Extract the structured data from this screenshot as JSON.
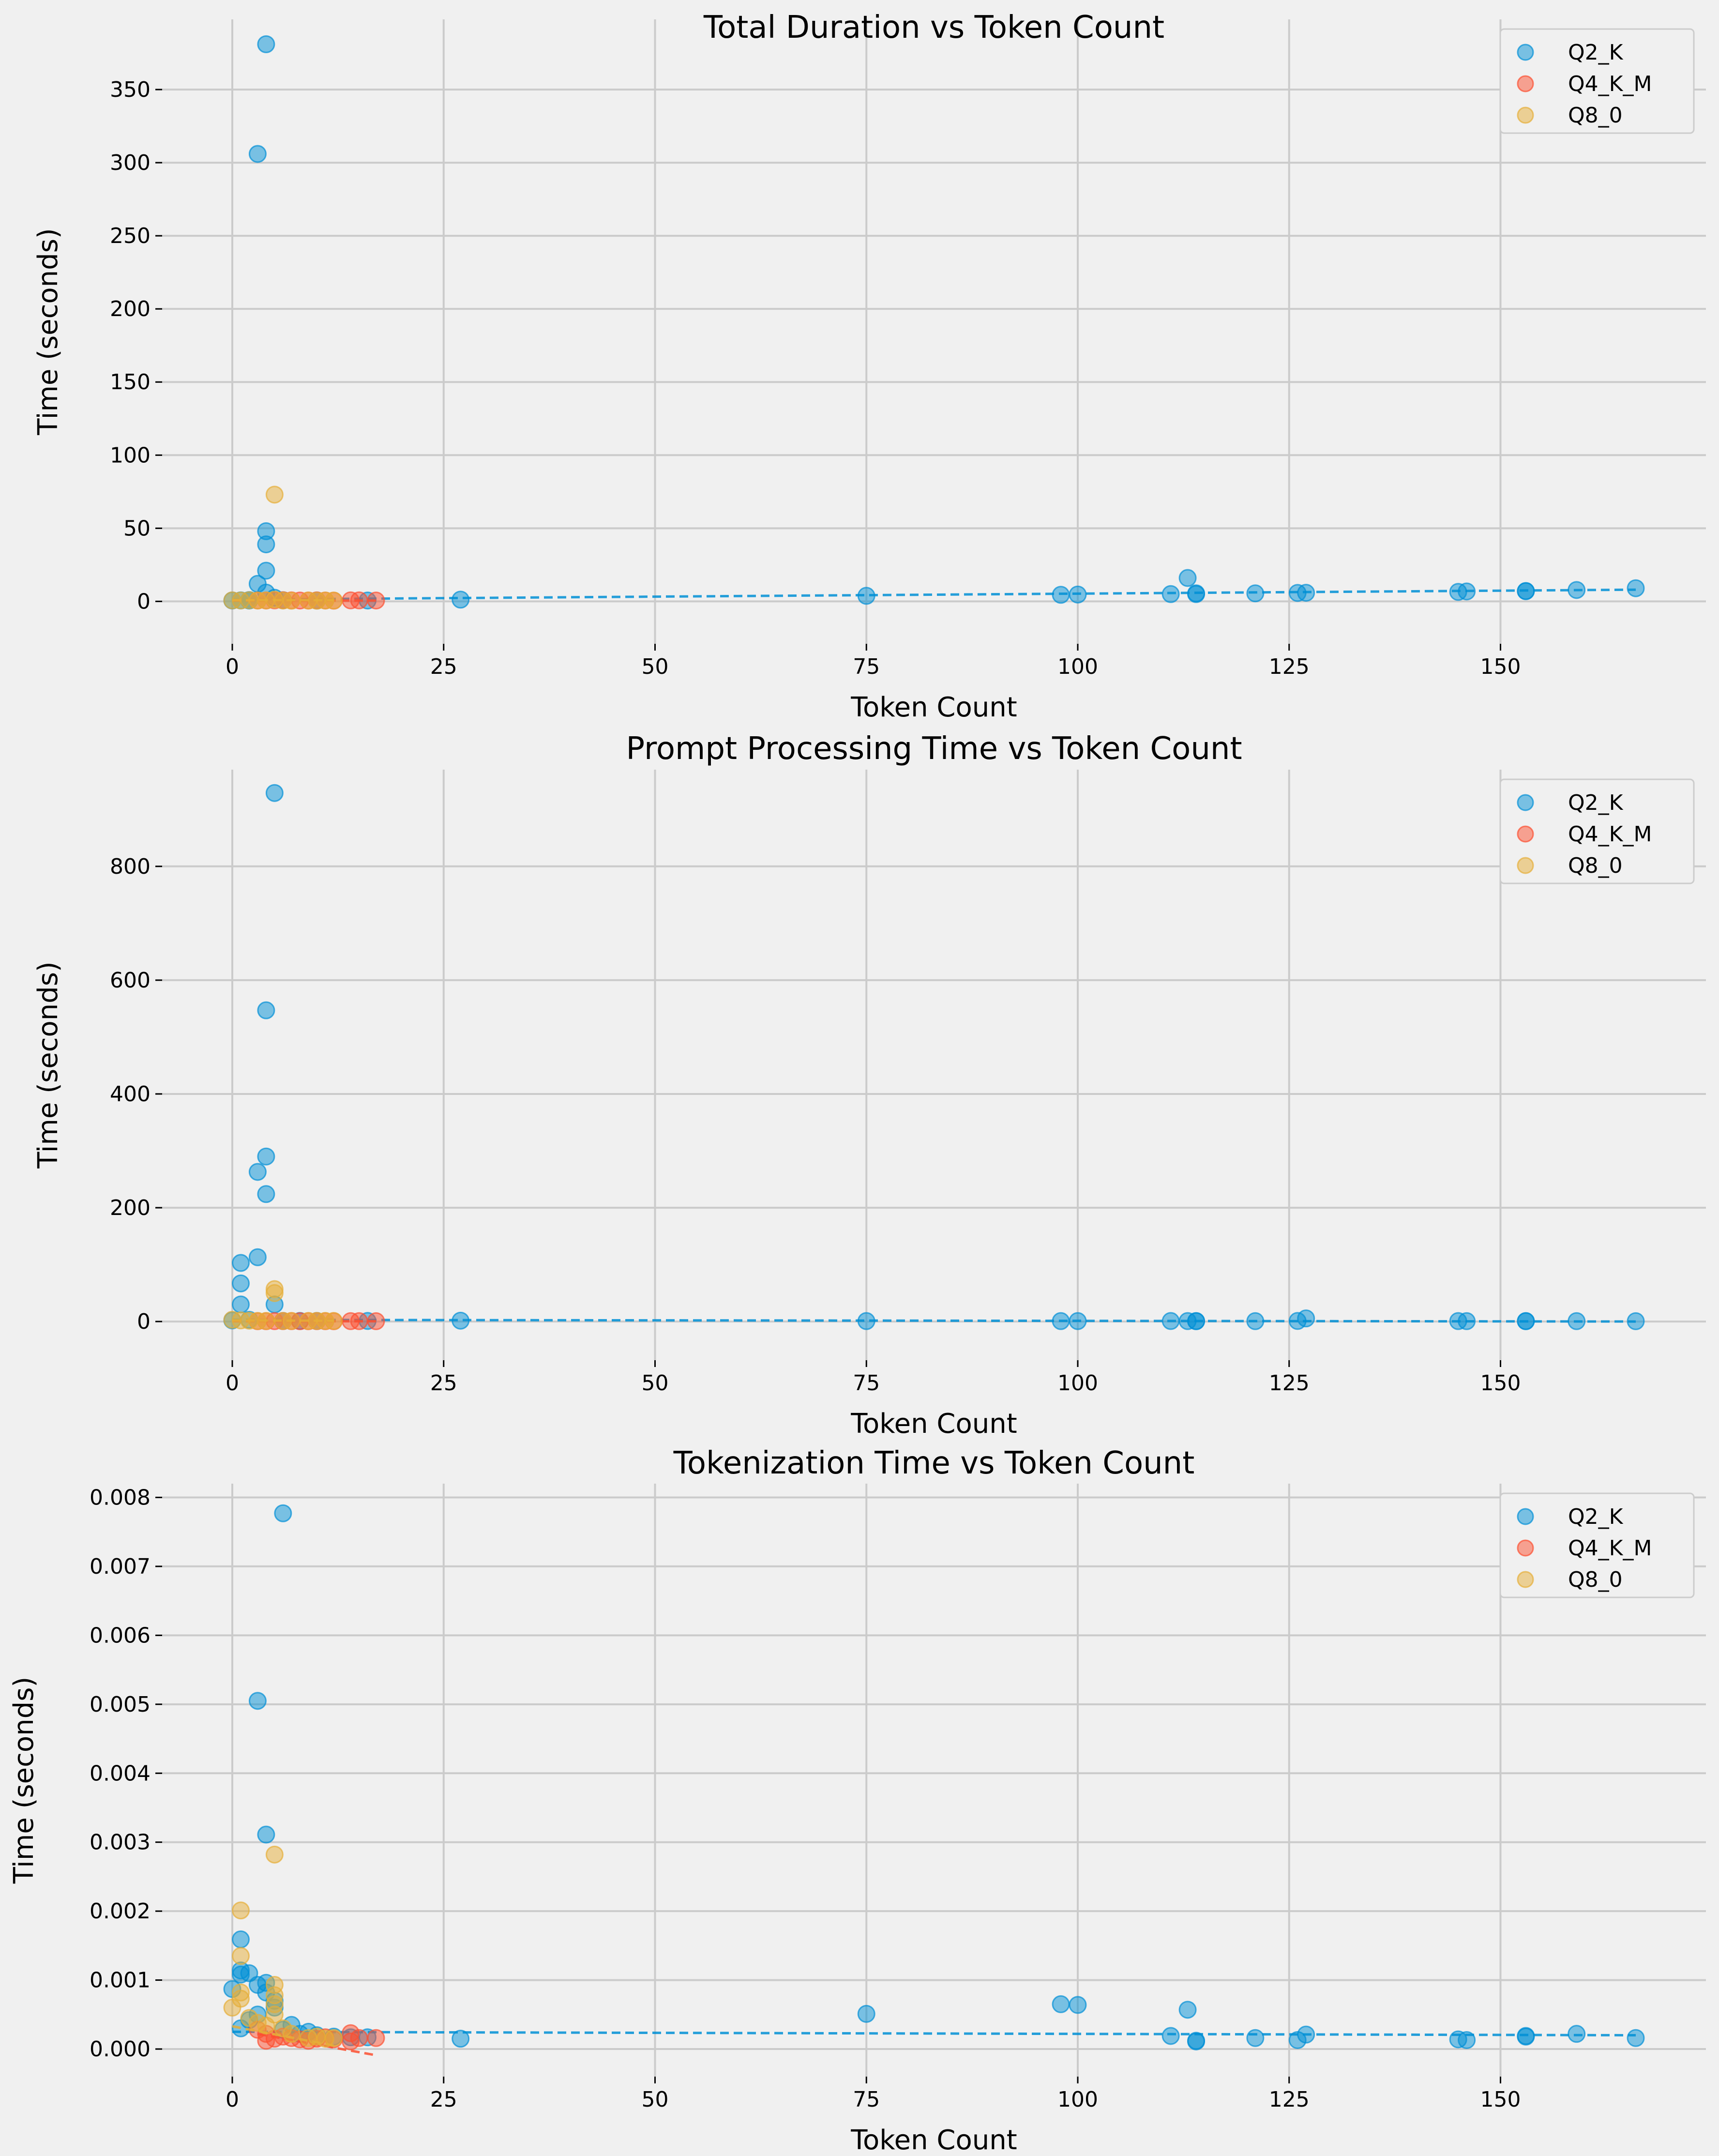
{
  "colors": {
    "Q2_K": "#008fd5",
    "Q4_K_M": "#fc4f30",
    "Q8_0": "#e5ae38",
    "background": "#f0f0f0",
    "grid": "#cbcbcb"
  },
  "chart_data": [
    {
      "type": "scatter",
      "title": "Total Duration vs Token Count",
      "xlabel": "Token Count",
      "ylabel": "Time (seconds)",
      "xlim": [
        -8.3,
        174.3
      ],
      "ylim": [
        -29,
        398
      ],
      "xticks": [
        0,
        25,
        50,
        75,
        100,
        125,
        150
      ],
      "xtick_labels": [
        "0",
        "25",
        "50",
        "75",
        "100",
        "125",
        "150"
      ],
      "yticks": [
        0,
        50,
        100,
        150,
        200,
        250,
        300,
        350
      ],
      "ytick_labels": [
        "0",
        "50",
        "100",
        "150",
        "200",
        "250",
        "300",
        "350"
      ],
      "grid": true,
      "legend": "top-right",
      "series": [
        {
          "name": "Q2_K",
          "points": [
            [
              0,
              0.6
            ],
            [
              1,
              0.7
            ],
            [
              2,
              0.6
            ],
            [
              3,
              12
            ],
            [
              3,
              306
            ],
            [
              4,
              381
            ],
            [
              4,
              48
            ],
            [
              4,
              39
            ],
            [
              4,
              21
            ],
            [
              4,
              6
            ],
            [
              5,
              2.5
            ],
            [
              2,
              0.9
            ],
            [
              6,
              0.8
            ],
            [
              10,
              0.6
            ],
            [
              16,
              0.6
            ],
            [
              27,
              1.2
            ],
            [
              75,
              3.8
            ],
            [
              98,
              4.5
            ],
            [
              100,
              4.7
            ],
            [
              111,
              5
            ],
            [
              113,
              16
            ],
            [
              114,
              5
            ],
            [
              114,
              5.5
            ],
            [
              121,
              5.5
            ],
            [
              126,
              5.8
            ],
            [
              127,
              5.9
            ],
            [
              145,
              6.5
            ],
            [
              146,
              6.8
            ],
            [
              153,
              7
            ],
            [
              153,
              7.1
            ],
            [
              159,
              7.8
            ],
            [
              166,
              9
            ]
          ],
          "trend": [
            [
              0,
              1.2
            ],
            [
              166,
              8.0
            ]
          ]
        },
        {
          "name": "Q4_K_M",
          "points": [
            [
              3,
              0.6
            ],
            [
              4,
              0.6
            ],
            [
              5,
              0.7
            ],
            [
              6,
              0.8
            ],
            [
              7,
              0.7
            ],
            [
              8,
              0.6
            ],
            [
              9,
              0.6
            ],
            [
              10,
              0.7
            ],
            [
              11,
              0.6
            ],
            [
              12,
              0.5
            ],
            [
              14,
              0.7
            ],
            [
              15,
              0.7
            ],
            [
              17,
              0.6
            ]
          ],
          "trend": [
            [
              0,
              0.6
            ],
            [
              17,
              0.6
            ]
          ]
        },
        {
          "name": "Q8_0",
          "points": [
            [
              0,
              0.7
            ],
            [
              1,
              0.6
            ],
            [
              2,
              0.8
            ],
            [
              3,
              0.6
            ],
            [
              4,
              0.7
            ],
            [
              5,
              73
            ],
            [
              5,
              1.2
            ],
            [
              6,
              0.6
            ],
            [
              7,
              0.5
            ],
            [
              9,
              0.6
            ],
            [
              10,
              0.5
            ],
            [
              11,
              0.6
            ],
            [
              12,
              0.6
            ]
          ],
          "trend": [
            [
              0,
              1.0
            ],
            [
              12,
              0.8
            ]
          ]
        }
      ]
    },
    {
      "type": "scatter",
      "title": "Prompt Processing Time vs Token Count",
      "xlabel": "Token Count",
      "ylabel": "Time (seconds)",
      "xlim": [
        -8.3,
        174.3
      ],
      "ylim": [
        -68,
        970
      ],
      "xticks": [
        0,
        25,
        50,
        75,
        100,
        125,
        150
      ],
      "xtick_labels": [
        "0",
        "25",
        "50",
        "75",
        "100",
        "125",
        "150"
      ],
      "yticks": [
        0,
        200,
        400,
        600,
        800
      ],
      "ytick_labels": [
        "0",
        "200",
        "400",
        "600",
        "800"
      ],
      "grid": true,
      "legend": "top-right",
      "series": [
        {
          "name": "Q2_K",
          "points": [
            [
              5,
              929
            ],
            [
              4,
              547
            ],
            [
              4,
              290
            ],
            [
              3,
              263
            ],
            [
              4,
              224
            ],
            [
              3,
              113
            ],
            [
              1,
              103
            ],
            [
              1,
              67
            ],
            [
              1,
              30
            ],
            [
              5,
              30
            ],
            [
              0,
              2
            ],
            [
              2,
              3
            ],
            [
              6,
              1
            ],
            [
              8,
              1
            ],
            [
              10,
              1
            ],
            [
              16,
              1
            ],
            [
              27,
              1.5
            ],
            [
              75,
              0.8
            ],
            [
              98,
              0.8
            ],
            [
              100,
              0.8
            ],
            [
              111,
              0.9
            ],
            [
              113,
              0.8
            ],
            [
              114,
              0.8
            ],
            [
              114,
              0.6
            ],
            [
              121,
              0.7
            ],
            [
              126,
              1.0
            ],
            [
              127,
              5.5
            ],
            [
              145,
              0.8
            ],
            [
              146,
              0.7
            ],
            [
              153,
              0.8
            ],
            [
              153,
              0.6
            ],
            [
              159,
              0.7
            ],
            [
              166,
              0.6
            ]
          ],
          "trend": [
            [
              0,
              3.0
            ],
            [
              166,
              0.0
            ]
          ]
        },
        {
          "name": "Q4_K_M",
          "points": [
            [
              3,
              0.6
            ],
            [
              4,
              0.6
            ],
            [
              5,
              0.7
            ],
            [
              6,
              0.8
            ],
            [
              7,
              0.7
            ],
            [
              8,
              0.6
            ],
            [
              9,
              0.6
            ],
            [
              10,
              0.7
            ],
            [
              11,
              0.6
            ],
            [
              12,
              0.5
            ],
            [
              14,
              0.7
            ],
            [
              15,
              0.7
            ],
            [
              17,
              0.6
            ]
          ],
          "trend": [
            [
              0,
              0.5
            ],
            [
              17,
              0.5
            ]
          ]
        },
        {
          "name": "Q8_0",
          "points": [
            [
              0,
              3
            ],
            [
              1,
              2
            ],
            [
              2,
              1.5
            ],
            [
              3,
              1
            ],
            [
              4,
              1
            ],
            [
              5,
              57
            ],
            [
              5,
              50
            ],
            [
              6,
              1
            ],
            [
              7,
              1
            ],
            [
              9,
              1
            ],
            [
              10,
              1
            ],
            [
              11,
              1
            ],
            [
              12,
              1
            ]
          ],
          "trend": [
            [
              0,
              2.0
            ],
            [
              12,
              1.5
            ]
          ]
        }
      ]
    },
    {
      "type": "scatter",
      "title": "Tokenization Time vs Token Count",
      "xlabel": "Token Count",
      "ylabel": "Time (seconds)",
      "xlim": [
        -8.3,
        174.3
      ],
      "ylim": [
        -0.0004,
        0.0082
      ],
      "xticks": [
        0,
        25,
        50,
        75,
        100,
        125,
        150
      ],
      "xtick_labels": [
        "0",
        "25",
        "50",
        "75",
        "100",
        "125",
        "150"
      ],
      "yticks": [
        0,
        0.001,
        0.002,
        0.003,
        0.004,
        0.005,
        0.006,
        0.007,
        0.008
      ],
      "ytick_labels": [
        "0.000",
        "0.001",
        "0.002",
        "0.003",
        "0.004",
        "0.005",
        "0.006",
        "0.007",
        "0.008"
      ],
      "grid": true,
      "legend": "top-right",
      "series": [
        {
          "name": "Q2_K",
          "points": [
            [
              6,
              0.00777
            ],
            [
              3,
              0.00505
            ],
            [
              4,
              0.00311
            ],
            [
              1,
              0.00159
            ],
            [
              1,
              0.00114
            ],
            [
              1,
              0.00108
            ],
            [
              2,
              0.0011
            ],
            [
              0,
              0.00087
            ],
            [
              3,
              0.00093
            ],
            [
              4,
              0.00096
            ],
            [
              4,
              0.00082
            ],
            [
              5,
              0.0007
            ],
            [
              5,
              0.0006
            ],
            [
              3,
              0.0005
            ],
            [
              2,
              0.00042
            ],
            [
              1,
              0.0003
            ],
            [
              6,
              0.00028
            ],
            [
              7,
              0.00035
            ],
            [
              8,
              0.00022
            ],
            [
              9,
              0.00025
            ],
            [
              10,
              0.0002
            ],
            [
              12,
              0.00018
            ],
            [
              14,
              0.00017
            ],
            [
              16,
              0.00017
            ],
            [
              27,
              0.00015
            ],
            [
              75,
              0.00051
            ],
            [
              98,
              0.00065
            ],
            [
              100,
              0.00064
            ],
            [
              111,
              0.00019
            ],
            [
              113,
              0.00057
            ],
            [
              114,
              0.00012
            ],
            [
              114,
              0.00011
            ],
            [
              121,
              0.00016
            ],
            [
              126,
              0.00013
            ],
            [
              127,
              0.00021
            ],
            [
              145,
              0.00014
            ],
            [
              146,
              0.00013
            ],
            [
              153,
              0.00019
            ],
            [
              153,
              0.00018
            ],
            [
              159,
              0.00022
            ],
            [
              166,
              0.00016
            ]
          ],
          "trend": [
            [
              0,
              0.00025
            ],
            [
              166,
              0.0002
            ]
          ]
        },
        {
          "name": "Q4_K_M",
          "points": [
            [
              3,
              0.00028
            ],
            [
              4,
              0.00022
            ],
            [
              4,
              0.00012
            ],
            [
              5,
              0.00015
            ],
            [
              6,
              0.00018
            ],
            [
              7,
              0.00016
            ],
            [
              8,
              0.00014
            ],
            [
              9,
              0.00012
            ],
            [
              10,
              0.00015
            ],
            [
              11,
              0.00017
            ],
            [
              12,
              0.00014
            ],
            [
              14,
              0.00011
            ],
            [
              14,
              0.00023
            ],
            [
              15,
              0.00016
            ],
            [
              17,
              0.00016
            ]
          ],
          "trend": [
            [
              3,
              0.00022
            ],
            [
              17,
              -9e-05
            ]
          ]
        },
        {
          "name": "Q8_0",
          "points": [
            [
              1,
              0.00201
            ],
            [
              1,
              0.00135
            ],
            [
              0,
              0.0006
            ],
            [
              1,
              0.00082
            ],
            [
              1,
              0.00073
            ],
            [
              2,
              0.00045
            ],
            [
              3,
              0.00038
            ],
            [
              4,
              0.00034
            ],
            [
              5,
              0.00282
            ],
            [
              5,
              0.00093
            ],
            [
              5,
              0.00078
            ],
            [
              5,
              0.00065
            ],
            [
              5,
              0.0005
            ],
            [
              6,
              0.0003
            ],
            [
              7,
              0.00022
            ],
            [
              9,
              0.00016
            ],
            [
              10,
              0.00018
            ],
            [
              11,
              0.00015
            ],
            [
              12,
              0.00016
            ]
          ],
          "trend": [
            [
              0,
              0.00033
            ],
            [
              12,
              5e-05
            ]
          ]
        }
      ]
    }
  ]
}
